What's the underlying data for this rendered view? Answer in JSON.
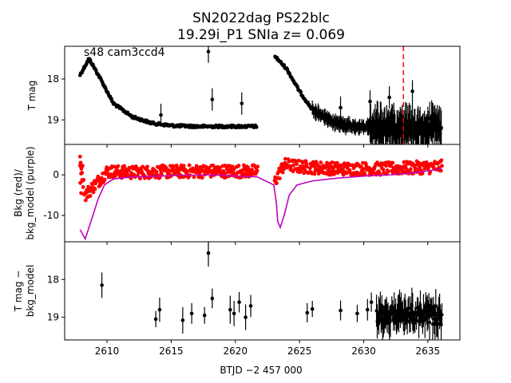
{
  "title": {
    "line1": "SN2022dag  PS22blc",
    "line2": "19.29i_P1 SNIa z= 0.069"
  },
  "xlabel": "BTJD −2 457 000",
  "chart_data": [
    {
      "type": "scatter",
      "panel": "top",
      "annotation": "s48 cam3ccd4",
      "ylabel": "T mag",
      "y_inverted": true,
      "xlim": [
        2606.7,
        2637.5
      ],
      "ylim": [
        19.6,
        17.2
      ],
      "x_ticks": [
        2610,
        2615,
        2620,
        2625,
        2630,
        2635
      ],
      "y_ticks": [
        18,
        19
      ],
      "vline": {
        "x": 2633.1,
        "color": "#ff0000",
        "style": "dashed"
      },
      "gaps": [
        [
          2621.7,
          2623.1
        ]
      ],
      "series": [
        {
          "marker_color": "#000000",
          "trend_points": [
            [
              2607.9,
              17.9
            ],
            [
              2608.6,
              17.5
            ],
            [
              2609.5,
              18.0
            ],
            [
              2610.5,
              18.6
            ],
            [
              2612.0,
              18.93
            ],
            [
              2613.5,
              19.08
            ],
            [
              2615.0,
              19.14
            ],
            [
              2617.0,
              19.16
            ],
            [
              2619.0,
              19.16
            ],
            [
              2621.7,
              19.16
            ],
            [
              2623.1,
              17.45
            ],
            [
              2624.0,
              17.75
            ],
            [
              2625.0,
              18.3
            ],
            [
              2626.0,
              18.75
            ],
            [
              2627.5,
              19.05
            ],
            [
              2629.0,
              19.15
            ],
            [
              2630.5,
              19.18
            ],
            [
              2632.5,
              19.18
            ],
            [
              2634.5,
              19.18
            ],
            [
              2636.1,
              19.18
            ]
          ]
        },
        {
          "outliers": [
            [
              2617.9,
              17.33
            ],
            [
              2618.2,
              18.5
            ],
            [
              2614.2,
              18.88
            ],
            [
              2620.5,
              18.6
            ],
            [
              2628.2,
              18.7
            ],
            [
              2630.5,
              18.55
            ],
            [
              2632.0,
              18.45
            ],
            [
              2633.8,
              18.3
            ]
          ]
        }
      ]
    },
    {
      "type": "line+scatter",
      "panel": "middle",
      "ylabel": "Bkg (red)/\nbkg_model (purple)",
      "xlim": [
        2606.7,
        2637.5
      ],
      "ylim": [
        -16.5,
        7.5
      ],
      "x_ticks": [
        2610,
        2615,
        2620,
        2625,
        2630,
        2635
      ],
      "y_ticks": [
        0,
        -10
      ],
      "series": [
        {
          "name": "Bkg",
          "color": "#ff0000",
          "trend_points": [
            [
              2607.9,
              3.5
            ],
            [
              2608.3,
              -5.0
            ],
            [
              2609.2,
              -2.0
            ],
            [
              2610.0,
              0.8
            ],
            [
              2612.0,
              0.6
            ],
            [
              2615.0,
              0.8
            ],
            [
              2618.0,
              0.9
            ],
            [
              2621.7,
              0.9
            ],
            [
              2623.1,
              -1.5
            ],
            [
              2623.8,
              2.5
            ],
            [
              2625.0,
              2.0
            ],
            [
              2628.0,
              1.5
            ],
            [
              2632.0,
              1.5
            ],
            [
              2636.1,
              2.0
            ]
          ]
        },
        {
          "name": "bkg_model",
          "color": "#bf00bf",
          "points": [
            [
              2607.9,
              -13.5
            ],
            [
              2608.3,
              -15.8
            ],
            [
              2608.8,
              -11.0
            ],
            [
              2609.3,
              -6.0
            ],
            [
              2609.8,
              -2.5
            ],
            [
              2610.5,
              -1.0
            ],
            [
              2612.0,
              -0.5
            ],
            [
              2614.0,
              -0.3
            ],
            [
              2616.0,
              -0.1
            ],
            [
              2618.0,
              0.0
            ],
            [
              2620.0,
              -0.3
            ],
            [
              2621.7,
              -0.5
            ],
            [
              2623.0,
              -2.5
            ],
            [
              2623.2,
              -7.0
            ],
            [
              2623.3,
              -11.5
            ],
            [
              2623.5,
              -13.0
            ],
            [
              2623.8,
              -10.0
            ],
            [
              2624.2,
              -5.0
            ],
            [
              2624.8,
              -2.5
            ],
            [
              2626.0,
              -1.5
            ],
            [
              2628.0,
              -0.8
            ],
            [
              2630.0,
              -0.3
            ],
            [
              2632.0,
              0.0
            ],
            [
              2634.0,
              0.5
            ],
            [
              2636.1,
              1.5
            ]
          ]
        }
      ]
    },
    {
      "type": "scatter",
      "panel": "bottom",
      "ylabel": "T mag −\nbkg_model",
      "y_inverted": true,
      "xlim": [
        2606.7,
        2637.5
      ],
      "ylim": [
        19.6,
        17.0
      ],
      "x_ticks": [
        2610,
        2615,
        2620,
        2625,
        2630,
        2635
      ],
      "y_ticks": [
        18,
        19
      ],
      "series": [
        {
          "marker_color": "#000000",
          "points": [
            [
              2609.6,
              18.15
            ],
            [
              2613.8,
              19.05
            ],
            [
              2614.1,
              18.8
            ],
            [
              2615.9,
              19.08
            ],
            [
              2616.6,
              18.9
            ],
            [
              2617.9,
              17.3
            ],
            [
              2617.6,
              18.95
            ],
            [
              2618.2,
              18.5
            ],
            [
              2619.6,
              18.8
            ],
            [
              2619.9,
              18.9
            ],
            [
              2620.3,
              18.6
            ],
            [
              2620.8,
              19.0
            ],
            [
              2621.2,
              18.7
            ],
            [
              2625.6,
              18.88
            ],
            [
              2626.0,
              18.78
            ],
            [
              2628.2,
              18.82
            ],
            [
              2629.5,
              18.9
            ],
            [
              2630.3,
              18.8
            ],
            [
              2630.6,
              18.6
            ]
          ],
          "dense_region": [
            2631.0,
            2636.1
          ]
        }
      ]
    }
  ]
}
